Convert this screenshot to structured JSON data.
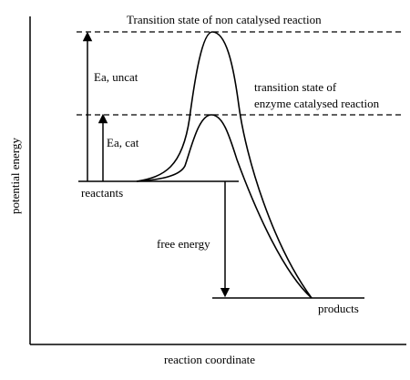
{
  "labels": {
    "ts_uncat": "Transition state of non catalysed reaction",
    "ts_cat_line1": "transition state of",
    "ts_cat_line2": "enzyme catalysed reaction",
    "ea_uncat": "Ea, uncat",
    "ea_cat": "Ea, cat",
    "reactants": "reactants",
    "free_energy": "free energy",
    "products": "products",
    "y_axis": "potential energy",
    "x_axis": "reaction coordinate"
  }
}
